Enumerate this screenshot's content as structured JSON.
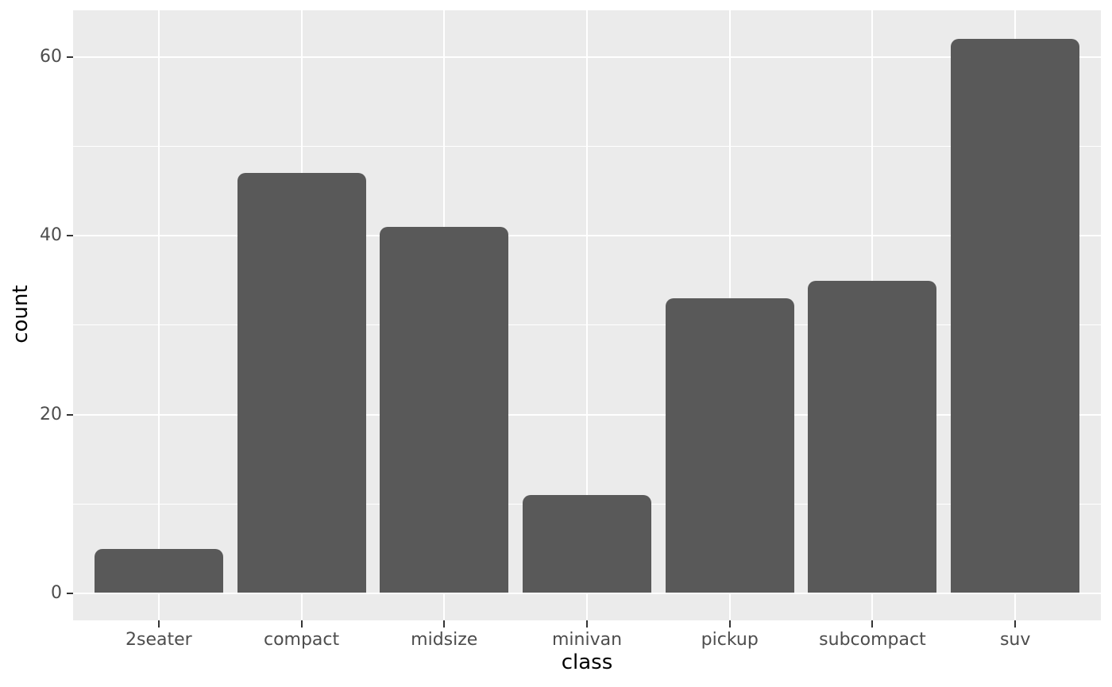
{
  "chart_data": {
    "type": "bar",
    "title": "",
    "categories": [
      "2seater",
      "compact",
      "midsize",
      "minivan",
      "pickup",
      "subcompact",
      "suv"
    ],
    "values": [
      5,
      47,
      41,
      11,
      33,
      35,
      62
    ],
    "xlabel": "class",
    "ylabel": "count",
    "y_ticks": [
      0,
      20,
      40,
      60
    ],
    "y_minor_ticks": [
      10,
      30,
      50
    ],
    "ylim": [
      0,
      62
    ],
    "panel_value_range": [
      -3.0,
      65.2
    ],
    "grid": "on",
    "legend": "none",
    "colors": {
      "bar_fill": "#595959",
      "panel_bg": "#EBEBEB",
      "gridline": "#FFFFFF",
      "tick_text": "#4D4D4D",
      "axis_title_text": "#000000",
      "tick_mark": "#333333",
      "page_bg": "#FFFFFF"
    }
  }
}
